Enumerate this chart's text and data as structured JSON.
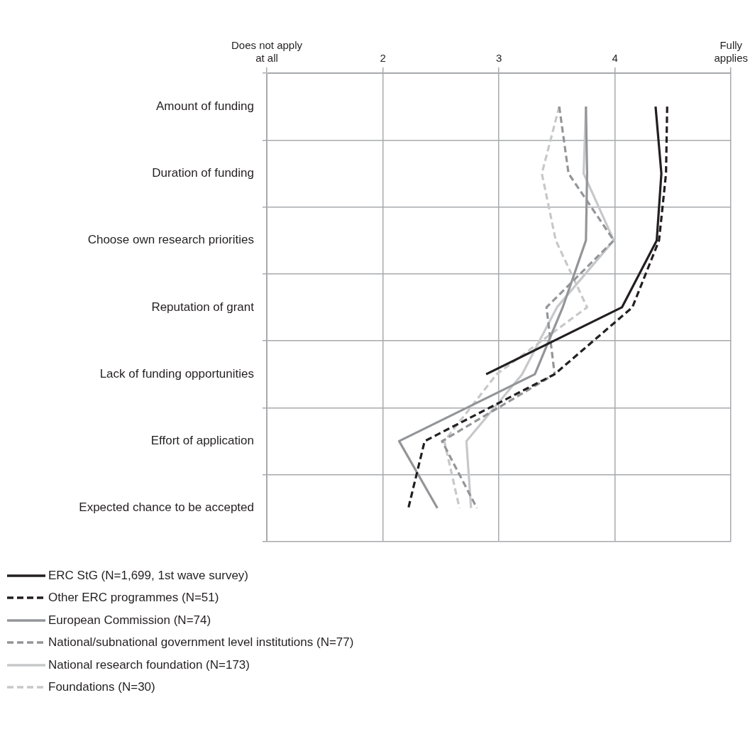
{
  "chart_data": {
    "type": "line",
    "orientation": "horizontal",
    "categories": [
      "Amount of funding",
      "Duration of funding",
      "Choose own research priorities",
      "Reputation of grant",
      "Lack of funding opportunities",
      "Effort of application",
      "Expected chance to be accepted"
    ],
    "xlim": [
      1,
      5
    ],
    "xticks": [
      {
        "value": 1,
        "label": "Does not apply at all"
      },
      2,
      3,
      4,
      {
        "value": 5,
        "label": "Fully applies"
      }
    ],
    "grid": true,
    "legend": "bottom",
    "marker": "none",
    "series": [
      {
        "name": "ERC StG (N=1,699, 1st wave survey)",
        "color": "#231f20",
        "line_style": "solid",
        "values": [
          4.35,
          4.4,
          4.36,
          4.06,
          2.89,
          null,
          null
        ]
      },
      {
        "name": "Other ERC programmes (N=51)",
        "color": "#231f20",
        "line_style": "dashed",
        "values": [
          4.45,
          4.44,
          4.38,
          4.15,
          3.48,
          2.36,
          2.22
        ]
      },
      {
        "name": "European Commission (N=74)",
        "color": "#939598",
        "line_style": "solid",
        "values": [
          3.75,
          3.76,
          3.75,
          3.55,
          3.31,
          2.14,
          2.47
        ]
      },
      {
        "name": "National/subnational government level institutions (N=77)",
        "color": "#939598",
        "line_style": "dashed",
        "values": [
          3.52,
          3.6,
          3.99,
          3.41,
          3.48,
          2.51,
          2.81
        ]
      },
      {
        "name": "National research foundation (N=173)",
        "color": "#c7c8ca",
        "line_style": "solid",
        "values": [
          3.75,
          3.73,
          3.99,
          3.5,
          3.2,
          2.72,
          2.76
        ]
      },
      {
        "name": "Foundations (N=30)",
        "color": "#c7c8ca",
        "line_style": "dashed",
        "values": [
          3.52,
          3.37,
          3.49,
          3.76,
          2.98,
          2.53,
          2.66
        ]
      }
    ]
  }
}
